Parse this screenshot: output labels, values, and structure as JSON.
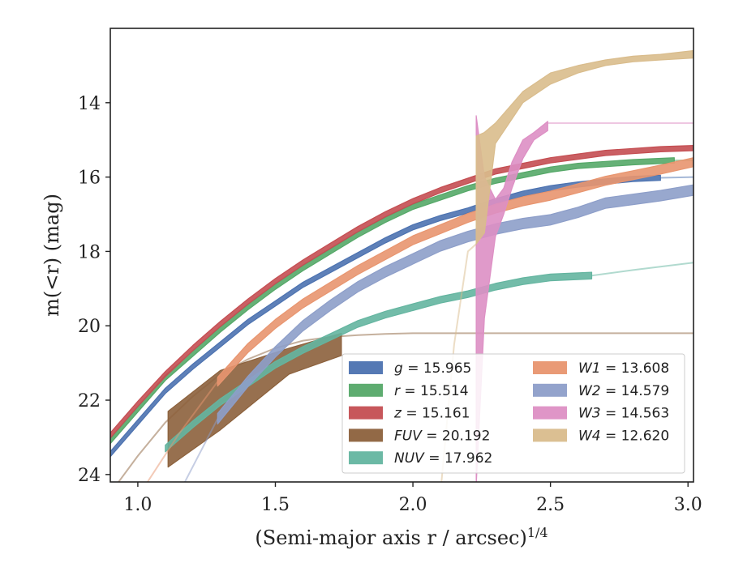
{
  "chart_data": {
    "type": "line",
    "xlabel": "(Semi-major axis r / arcsec)",
    "xlabel_sup": "1/4",
    "ylabel": "m(<r) (mag)",
    "xlim": [
      0.9,
      3.02
    ],
    "ylim": [
      24.2,
      12.0
    ],
    "y_inverted": true,
    "grid": false,
    "legend_position": "lower-right",
    "x_ticks": [
      {
        "value": 1.0,
        "label": "1.0"
      },
      {
        "value": 1.5,
        "label": "1.5"
      },
      {
        "value": 2.0,
        "label": "2.0"
      },
      {
        "value": 2.5,
        "label": "2.5"
      },
      {
        "value": 3.0,
        "label": "3.0"
      }
    ],
    "y_ticks": [
      {
        "value": 14,
        "label": "14"
      },
      {
        "value": 16,
        "label": "16"
      },
      {
        "value": 18,
        "label": "18"
      },
      {
        "value": 20,
        "label": "20"
      },
      {
        "value": 22,
        "label": "22"
      },
      {
        "value": 24,
        "label": "24"
      }
    ],
    "series": [
      {
        "name": "g",
        "legend_label": "g = 15.965",
        "color": "#4c72b0",
        "x": [
          0.9,
          1.0,
          1.1,
          1.2,
          1.3,
          1.4,
          1.5,
          1.6,
          1.7,
          1.8,
          1.9,
          2.0,
          2.1,
          2.2,
          2.3,
          2.4,
          2.5,
          2.6,
          2.7,
          2.8,
          2.9
        ],
        "y": [
          23.45,
          22.6,
          21.75,
          21.1,
          20.5,
          19.9,
          19.4,
          18.9,
          18.5,
          18.1,
          17.7,
          17.35,
          17.1,
          16.9,
          16.65,
          16.45,
          16.3,
          16.2,
          16.12,
          16.05,
          16.02
        ],
        "halfwidth": 0.07,
        "tail_x": [
          2.9,
          3.02
        ],
        "tail_y": [
          16.02,
          16.0
        ]
      },
      {
        "name": "r",
        "legend_label": "r = 15.514",
        "color": "#55a868",
        "x": [
          0.9,
          1.0,
          1.1,
          1.2,
          1.3,
          1.4,
          1.5,
          1.6,
          1.7,
          1.8,
          1.9,
          2.0,
          2.1,
          2.2,
          2.3,
          2.4,
          2.5,
          2.6,
          2.7,
          2.8,
          2.95
        ],
        "y": [
          23.1,
          22.25,
          21.4,
          20.75,
          20.1,
          19.5,
          18.95,
          18.45,
          18.0,
          17.55,
          17.15,
          16.8,
          16.55,
          16.3,
          16.1,
          15.95,
          15.8,
          15.7,
          15.65,
          15.6,
          15.55
        ],
        "halfwidth": 0.07,
        "tail_x": [
          2.95,
          3.02
        ],
        "tail_y": [
          15.55,
          15.55
        ]
      },
      {
        "name": "z",
        "legend_label": "z = 15.161",
        "color": "#c44e52",
        "x": [
          0.9,
          1.0,
          1.1,
          1.2,
          1.3,
          1.4,
          1.5,
          1.6,
          1.7,
          1.8,
          1.9,
          2.0,
          2.1,
          2.2,
          2.3,
          2.4,
          2.5,
          2.6,
          2.7,
          2.8,
          2.9,
          3.02
        ],
        "y": [
          22.95,
          22.1,
          21.3,
          20.6,
          19.95,
          19.35,
          18.8,
          18.3,
          17.85,
          17.4,
          17.0,
          16.65,
          16.35,
          16.1,
          15.85,
          15.7,
          15.55,
          15.45,
          15.35,
          15.3,
          15.25,
          15.22
        ],
        "halfwidth": 0.07
      },
      {
        "name": "FUV",
        "legend_label": "FUV = 20.192",
        "color": "#8c613c",
        "band_x": [
          1.11,
          1.3,
          1.55,
          1.74
        ],
        "band_upper": [
          22.3,
          21.2,
          20.6,
          20.2
        ],
        "band_lower": [
          23.8,
          22.8,
          21.3,
          20.8
        ],
        "tail_x": [
          0.9,
          1.0,
          1.1,
          1.2,
          1.3,
          1.4,
          1.5,
          1.6,
          1.7,
          1.8,
          1.9,
          2.0,
          2.2,
          2.5,
          3.02
        ],
        "tail_y": [
          24.5,
          23.5,
          22.6,
          21.9,
          21.3,
          20.9,
          20.6,
          20.4,
          20.3,
          20.25,
          20.22,
          20.2,
          20.2,
          20.2,
          20.2
        ]
      },
      {
        "name": "NUV",
        "legend_label": "NUV = 17.962",
        "color": "#64b5a0",
        "x": [
          1.1,
          1.2,
          1.3,
          1.4,
          1.5,
          1.6,
          1.7,
          1.8,
          1.9,
          2.0,
          2.1,
          2.2,
          2.3,
          2.4,
          2.5,
          2.65
        ],
        "y": [
          23.3,
          22.65,
          22.05,
          21.55,
          21.05,
          20.65,
          20.3,
          19.95,
          19.7,
          19.5,
          19.3,
          19.15,
          18.95,
          18.8,
          18.7,
          18.65
        ],
        "halfwidth": 0.09,
        "tail_x": [
          2.65,
          2.8,
          3.02
        ],
        "tail_y": [
          18.65,
          18.5,
          18.3
        ]
      },
      {
        "name": "W1",
        "legend_label": "W1 = 13.608",
        "color": "#e8956f",
        "x": [
          1.29,
          1.4,
          1.5,
          1.6,
          1.7,
          1.8,
          1.9,
          2.0,
          2.1,
          2.2,
          2.3,
          2.4,
          2.5,
          2.6,
          2.7,
          2.8,
          2.9,
          3.02
        ],
        "y": [
          21.5,
          20.6,
          19.95,
          19.4,
          18.95,
          18.5,
          18.1,
          17.7,
          17.4,
          17.1,
          16.85,
          16.65,
          16.5,
          16.3,
          16.1,
          15.95,
          15.8,
          15.6
        ],
        "halfwidth": 0.12,
        "tail_x": [
          1.0,
          1.15,
          1.29
        ],
        "tail_y": [
          24.6,
          22.9,
          21.5
        ]
      },
      {
        "name": "W2",
        "legend_label": "W2 = 14.579",
        "color": "#8d9ec9",
        "x": [
          1.29,
          1.4,
          1.5,
          1.6,
          1.7,
          1.8,
          1.9,
          2.0,
          2.1,
          2.2,
          2.3,
          2.4,
          2.5,
          2.6,
          2.7,
          2.8,
          2.9,
          3.02
        ],
        "y": [
          22.5,
          21.5,
          20.7,
          20.0,
          19.45,
          18.95,
          18.55,
          18.2,
          17.85,
          17.6,
          17.4,
          17.25,
          17.15,
          16.95,
          16.7,
          16.6,
          16.5,
          16.35
        ],
        "halfwidth": 0.14,
        "tail_x": [
          1.15,
          1.22,
          1.29
        ],
        "tail_y": [
          24.5,
          23.5,
          22.5
        ]
      },
      {
        "name": "W3",
        "legend_label": "W3 = 14.563",
        "color": "#dd8fc4",
        "band_x": [
          2.23,
          2.26,
          2.3,
          2.33,
          2.36,
          2.4,
          2.44,
          2.49
        ],
        "band_upper": [
          14.35,
          16.0,
          16.6,
          16.3,
          15.6,
          15.0,
          14.8,
          14.5
        ],
        "band_lower": [
          24.3,
          19.8,
          17.6,
          17.0,
          16.3,
          15.5,
          15.0,
          14.75
        ],
        "tail_x": [
          2.49,
          2.6,
          3.02
        ],
        "tail_y": [
          14.55,
          14.55,
          14.55
        ]
      },
      {
        "name": "W4",
        "legend_label": "W4 = 12.620",
        "color": "#d9bc8c",
        "band_x": [
          2.23,
          2.26,
          2.3,
          2.4,
          2.5,
          2.6,
          2.7,
          2.8,
          2.9,
          3.02
        ],
        "band_upper": [
          14.9,
          14.8,
          14.55,
          13.7,
          13.2,
          13.0,
          12.85,
          12.75,
          12.7,
          12.6
        ],
        "band_lower": [
          17.8,
          17.5,
          15.1,
          14.0,
          13.5,
          13.2,
          13.0,
          12.9,
          12.85,
          12.8
        ],
        "tail_x": [
          2.1,
          2.15,
          2.2,
          2.23
        ],
        "tail_y": [
          24.5,
          20.5,
          18.0,
          17.8
        ]
      }
    ]
  }
}
